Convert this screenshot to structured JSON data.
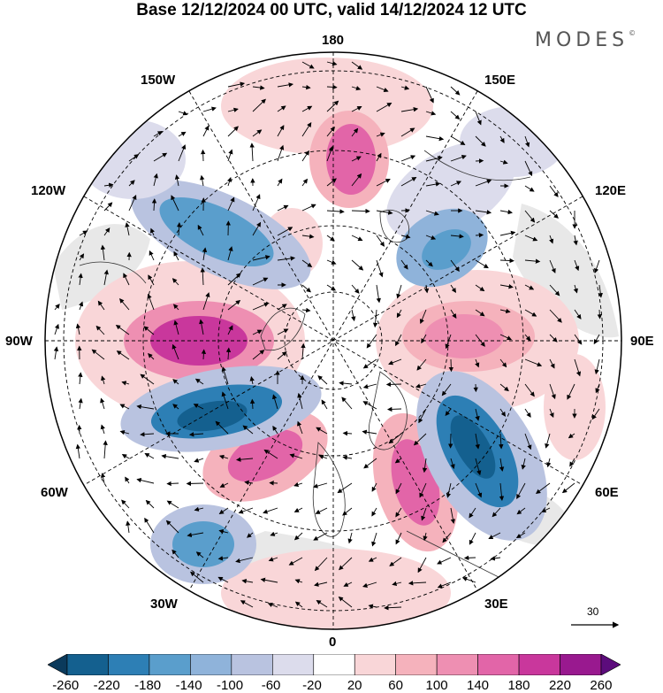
{
  "title": "Base 12/12/2024 00 UTC, valid 14/12/2024 12 UTC",
  "brand": "MODES",
  "brand_mark": "©",
  "longitude_labels": {
    "top": "180",
    "bottom": "0",
    "left": "90W",
    "right": "90E",
    "nw_upper": "150W",
    "nw_lower": "120W",
    "ne_upper": "150E",
    "ne_lower": "120E",
    "sw_upper": "60W",
    "sw_lower": "30W",
    "se_upper": "60E",
    "se_lower": "30E"
  },
  "reference_vector": "30",
  "colorbar": {
    "labels": [
      "-260",
      "-220",
      "-180",
      "-140",
      "-100",
      "-60",
      "-20",
      "20",
      "60",
      "100",
      "140",
      "180",
      "220",
      "260"
    ],
    "colors": [
      "#0b3a5c",
      "#14608f",
      "#2d7fb5",
      "#5a9ecc",
      "#8fb3da",
      "#b9c3e0",
      "#dcdcec",
      "#ffffff",
      "#f9d6d8",
      "#f5b2bc",
      "#ee8fb2",
      "#e265a8",
      "#c9379c",
      "#99198f",
      "#5c0c7c"
    ]
  },
  "colors": {
    "land_gray": "#e6e6e6",
    "coast": "#333333",
    "grid": "#000000"
  }
}
